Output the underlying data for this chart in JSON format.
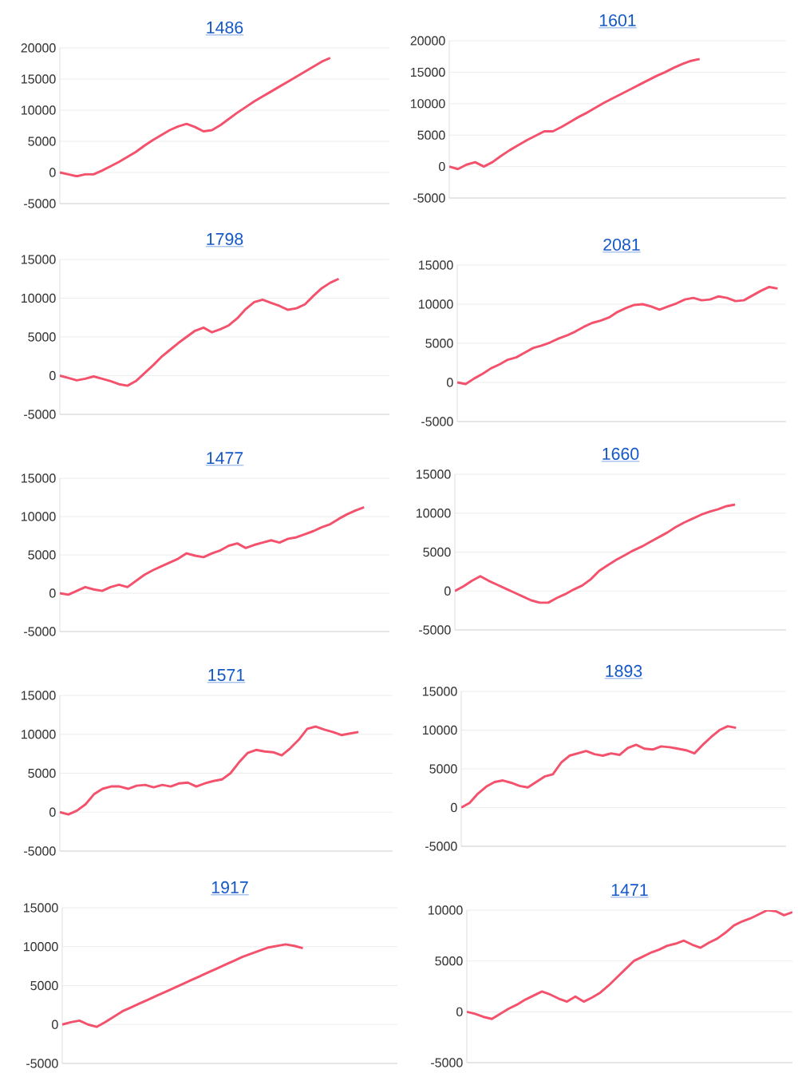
{
  "chart_data": [
    {
      "type": "line",
      "title": "1486",
      "categories": [
        null,
        null,
        null,
        null,
        null,
        null,
        null,
        null,
        null,
        null,
        null,
        null,
        null,
        null,
        null,
        null,
        null,
        null,
        null,
        null,
        null,
        null,
        null,
        null,
        null,
        null,
        null,
        null,
        null,
        null,
        null,
        null,
        null,
        null,
        null,
        null,
        null,
        null,
        null,
        null
      ],
      "values": [
        0,
        -300,
        -600,
        -300,
        -300,
        300,
        1000,
        1700,
        2500,
        3300,
        4300,
        5200,
        6000,
        6800,
        7400,
        7800,
        7300,
        6600,
        6800,
        7600,
        8600,
        9600,
        10500,
        11400,
        12200,
        13000,
        13800,
        14600,
        15400,
        16200,
        17000,
        17800,
        18400,
        null,
        null,
        null,
        null,
        null,
        null,
        null
      ],
      "color": "#f4516c",
      "ylim": [
        -5000,
        20000
      ],
      "yticks": [
        -5000,
        0,
        5000,
        10000,
        15000,
        20000
      ],
      "grid": "y",
      "tick_labels": "y",
      "marker": "none",
      "line_style": "solid"
    },
    {
      "type": "line",
      "title": "1601",
      "categories": [
        null,
        null,
        null,
        null,
        null,
        null,
        null,
        null,
        null,
        null,
        null,
        null,
        null,
        null,
        null,
        null,
        null,
        null,
        null,
        null,
        null,
        null,
        null,
        null,
        null,
        null,
        null,
        null,
        null,
        null,
        null,
        null,
        null,
        null,
        null,
        null,
        null,
        null,
        null,
        null
      ],
      "values": [
        0,
        -400,
        300,
        700,
        0,
        700,
        1700,
        2600,
        3400,
        4200,
        4900,
        5600,
        5600,
        6300,
        7100,
        7900,
        8600,
        9400,
        10200,
        10900,
        11600,
        12300,
        13000,
        13700,
        14400,
        15000,
        15700,
        16300,
        16800,
        17100,
        null,
        null,
        null,
        null,
        null,
        null,
        null,
        null,
        null,
        null
      ],
      "color": "#f4516c",
      "ylim": [
        -5000,
        20000
      ],
      "yticks": [
        -5000,
        0,
        5000,
        10000,
        15000,
        20000
      ],
      "grid": "y",
      "tick_labels": "y",
      "marker": "none",
      "line_style": "solid"
    },
    {
      "type": "line",
      "title": "1798",
      "categories": [
        null,
        null,
        null,
        null,
        null,
        null,
        null,
        null,
        null,
        null,
        null,
        null,
        null,
        null,
        null,
        null,
        null,
        null,
        null,
        null,
        null,
        null,
        null,
        null,
        null,
        null,
        null,
        null,
        null,
        null,
        null,
        null,
        null,
        null,
        null,
        null,
        null,
        null,
        null,
        null
      ],
      "values": [
        0,
        -300,
        -600,
        -400,
        -100,
        -400,
        -700,
        -1100,
        -1300,
        -700,
        300,
        1300,
        2400,
        3300,
        4200,
        5000,
        5800,
        6200,
        5600,
        6000,
        6500,
        7400,
        8600,
        9500,
        9800,
        9400,
        9000,
        8500,
        8700,
        9200,
        10300,
        11300,
        12000,
        12500,
        null,
        null,
        null,
        null,
        null,
        null
      ],
      "color": "#f4516c",
      "ylim": [
        -5000,
        15000
      ],
      "yticks": [
        -5000,
        0,
        5000,
        10000,
        15000
      ],
      "grid": "y",
      "tick_labels": "y",
      "marker": "none",
      "line_style": "solid"
    },
    {
      "type": "line",
      "title": "2081",
      "categories": [
        null,
        null,
        null,
        null,
        null,
        null,
        null,
        null,
        null,
        null,
        null,
        null,
        null,
        null,
        null,
        null,
        null,
        null,
        null,
        null,
        null,
        null,
        null,
        null,
        null,
        null,
        null,
        null,
        null,
        null,
        null,
        null,
        null,
        null,
        null,
        null,
        null,
        null,
        null,
        null
      ],
      "values": [
        0,
        -200,
        500,
        1100,
        1800,
        2300,
        2900,
        3200,
        3800,
        4400,
        4700,
        5100,
        5600,
        6000,
        6500,
        7100,
        7600,
        7900,
        8300,
        9000,
        9500,
        9900,
        10000,
        9700,
        9300,
        9700,
        10100,
        10600,
        10800,
        10500,
        10600,
        11000,
        10800,
        10400,
        10500,
        11100,
        11700,
        12200,
        12000,
        null
      ],
      "color": "#f4516c",
      "ylim": [
        -5000,
        15000
      ],
      "yticks": [
        -5000,
        0,
        5000,
        10000,
        15000
      ],
      "grid": "y",
      "tick_labels": "y",
      "marker": "none",
      "line_style": "solid"
    },
    {
      "type": "line",
      "title": "1477",
      "categories": [
        null,
        null,
        null,
        null,
        null,
        null,
        null,
        null,
        null,
        null,
        null,
        null,
        null,
        null,
        null,
        null,
        null,
        null,
        null,
        null,
        null,
        null,
        null,
        null,
        null,
        null,
        null,
        null,
        null,
        null,
        null,
        null,
        null,
        null,
        null,
        null,
        null,
        null,
        null,
        null
      ],
      "values": [
        0,
        -200,
        300,
        800,
        500,
        300,
        800,
        1100,
        800,
        1600,
        2400,
        3000,
        3500,
        4000,
        4500,
        5200,
        4900,
        4700,
        5200,
        5600,
        6200,
        6500,
        5900,
        6300,
        6600,
        6900,
        6600,
        7100,
        7300,
        7700,
        8100,
        8600,
        9000,
        9700,
        10300,
        10800,
        11200,
        null,
        null,
        null
      ],
      "color": "#f4516c",
      "ylim": [
        -5000,
        15000
      ],
      "yticks": [
        -5000,
        0,
        5000,
        10000,
        15000
      ],
      "grid": "y",
      "tick_labels": "y",
      "marker": "none",
      "line_style": "solid"
    },
    {
      "type": "line",
      "title": "1660",
      "categories": [
        null,
        null,
        null,
        null,
        null,
        null,
        null,
        null,
        null,
        null,
        null,
        null,
        null,
        null,
        null,
        null,
        null,
        null,
        null,
        null,
        null,
        null,
        null,
        null,
        null,
        null,
        null,
        null,
        null,
        null,
        null,
        null,
        null,
        null,
        null,
        null,
        null,
        null,
        null,
        null
      ],
      "values": [
        0,
        600,
        1300,
        1900,
        1300,
        800,
        300,
        -200,
        -700,
        -1200,
        -1500,
        -1500,
        -900,
        -400,
        200,
        700,
        1500,
        2600,
        3300,
        4000,
        4600,
        5200,
        5700,
        6300,
        6900,
        7500,
        8200,
        8800,
        9300,
        9800,
        10200,
        10500,
        10900,
        11100,
        null,
        null,
        null,
        null,
        null,
        null
      ],
      "color": "#f4516c",
      "ylim": [
        -5000,
        15000
      ],
      "yticks": [
        -5000,
        0,
        5000,
        10000,
        15000
      ],
      "grid": "y",
      "tick_labels": "y",
      "marker": "none",
      "line_style": "solid"
    },
    {
      "type": "line",
      "title": "1571",
      "categories": [
        null,
        null,
        null,
        null,
        null,
        null,
        null,
        null,
        null,
        null,
        null,
        null,
        null,
        null,
        null,
        null,
        null,
        null,
        null,
        null,
        null,
        null,
        null,
        null,
        null,
        null,
        null,
        null,
        null,
        null,
        null,
        null,
        null,
        null,
        null,
        null,
        null,
        null,
        null,
        null
      ],
      "values": [
        0,
        -300,
        200,
        1000,
        2300,
        3000,
        3300,
        3300,
        3000,
        3400,
        3500,
        3200,
        3500,
        3300,
        3700,
        3800,
        3300,
        3700,
        4000,
        4200,
        5000,
        6400,
        7600,
        8000,
        7800,
        7700,
        7300,
        8200,
        9300,
        10700,
        11000,
        10600,
        10300,
        9900,
        10100,
        10300,
        null,
        null,
        null,
        null
      ],
      "color": "#f4516c",
      "ylim": [
        -5000,
        15000
      ],
      "yticks": [
        -5000,
        0,
        5000,
        10000,
        15000
      ],
      "grid": "y",
      "tick_labels": "y",
      "marker": "none",
      "line_style": "solid"
    },
    {
      "type": "line",
      "title": "1893",
      "categories": [
        null,
        null,
        null,
        null,
        null,
        null,
        null,
        null,
        null,
        null,
        null,
        null,
        null,
        null,
        null,
        null,
        null,
        null,
        null,
        null,
        null,
        null,
        null,
        null,
        null,
        null,
        null,
        null,
        null,
        null,
        null,
        null,
        null,
        null,
        null,
        null,
        null,
        null,
        null,
        null
      ],
      "values": [
        0,
        600,
        1800,
        2700,
        3300,
        3500,
        3200,
        2800,
        2600,
        3300,
        4000,
        4300,
        5800,
        6700,
        7000,
        7300,
        6900,
        6700,
        7000,
        6800,
        7700,
        8100,
        7600,
        7500,
        7900,
        7800,
        7600,
        7400,
        7000,
        8100,
        9100,
        10000,
        10500,
        10300,
        null,
        null,
        null,
        null,
        null,
        null
      ],
      "color": "#f4516c",
      "ylim": [
        -5000,
        15000
      ],
      "yticks": [
        -5000,
        0,
        5000,
        10000,
        15000
      ],
      "grid": "y",
      "tick_labels": "y",
      "marker": "none",
      "line_style": "solid"
    },
    {
      "type": "line",
      "title": "1917",
      "categories": [
        null,
        null,
        null,
        null,
        null,
        null,
        null,
        null,
        null,
        null,
        null,
        null,
        null,
        null,
        null,
        null,
        null,
        null,
        null,
        null,
        null,
        null,
        null,
        null,
        null,
        null,
        null,
        null,
        null,
        null,
        null,
        null,
        null,
        null,
        null,
        null,
        null,
        null,
        null,
        null
      ],
      "values": [
        0,
        300,
        500,
        0,
        -300,
        300,
        1000,
        1700,
        2200,
        2700,
        3200,
        3700,
        4200,
        4700,
        5200,
        5700,
        6200,
        6700,
        7200,
        7700,
        8200,
        8700,
        9100,
        9500,
        9900,
        10100,
        10300,
        10100,
        9800,
        null,
        null,
        null,
        null,
        null,
        null,
        null,
        null,
        null,
        null,
        null
      ],
      "color": "#f4516c",
      "ylim": [
        -5000,
        15000
      ],
      "yticks": [
        -5000,
        0,
        5000,
        10000,
        15000
      ],
      "grid": "y",
      "tick_labels": "y",
      "marker": "none",
      "line_style": "solid"
    },
    {
      "type": "line",
      "title": "1471",
      "categories": [
        null,
        null,
        null,
        null,
        null,
        null,
        null,
        null,
        null,
        null,
        null,
        null,
        null,
        null,
        null,
        null,
        null,
        null,
        null,
        null,
        null,
        null,
        null,
        null,
        null,
        null,
        null,
        null,
        null,
        null,
        null,
        null,
        null,
        null,
        null,
        null,
        null,
        null,
        null,
        null
      ],
      "values": [
        0,
        -200,
        -500,
        -700,
        -200,
        300,
        700,
        1200,
        1600,
        2000,
        1700,
        1300,
        1000,
        1500,
        1000,
        1400,
        1900,
        2600,
        3400,
        4200,
        5000,
        5400,
        5800,
        6100,
        6500,
        6700,
        7000,
        6600,
        6300,
        6800,
        7200,
        7800,
        8500,
        8900,
        9200,
        9600,
        10000,
        9900,
        9500,
        9800
      ],
      "color": "#f4516c",
      "ylim": [
        -5000,
        10000
      ],
      "yticks": [
        -5000,
        0,
        5000,
        10000
      ],
      "grid": "y",
      "tick_labels": "y",
      "marker": "none",
      "line_style": "solid"
    }
  ]
}
